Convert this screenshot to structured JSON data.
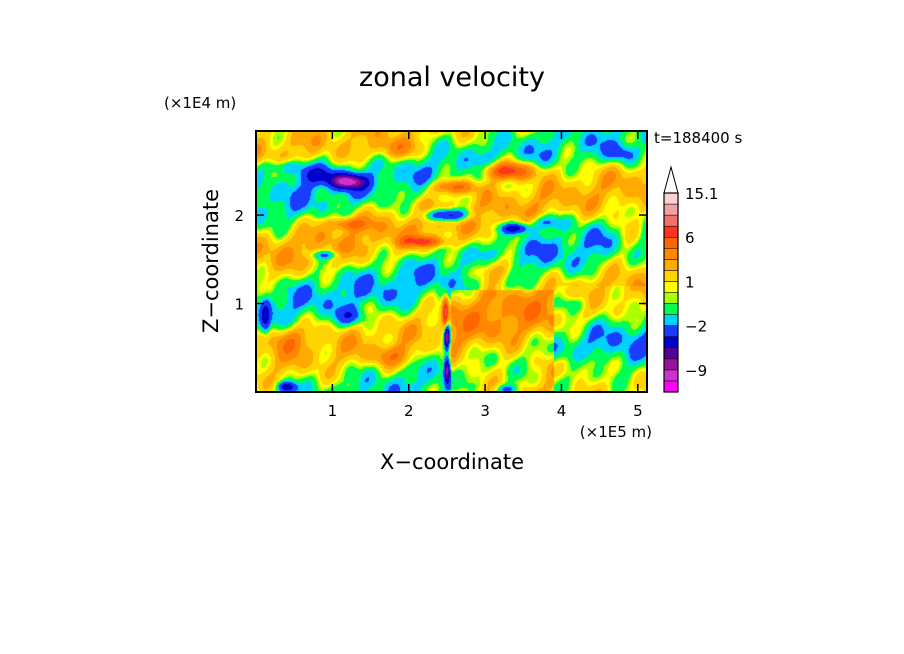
{
  "chart_data": {
    "type": "heatmap",
    "title": "zonal velocity",
    "xlabel": "X−coordinate",
    "ylabel": "Z−coordinate",
    "x_scale_label": "(×1E5 m)",
    "y_scale_label": "(×1E4 m)",
    "time_label": "t=188400 s",
    "xlim": [
      0.0,
      5.12
    ],
    "ylim": [
      0.0,
      2.95
    ],
    "x_ticks": [
      1,
      2,
      3,
      4,
      5
    ],
    "y_ticks": [
      1,
      2
    ],
    "colorbar": {
      "levels": [
        -12,
        -10.5,
        -9,
        -7.5,
        -6,
        -4,
        -2,
        -1,
        0,
        0.5,
        1,
        2,
        3,
        4.5,
        6,
        8,
        10,
        12.5,
        15.1,
        20
      ],
      "colors": [
        "#ff00ff",
        "#cc33cc",
        "#991199",
        "#550099",
        "#0000cc",
        "#1a3cff",
        "#00d2ff",
        "#00ff55",
        "#aaff00",
        "#ffff00",
        "#ffd400",
        "#ffaa00",
        "#ff8800",
        "#ff6600",
        "#ff3322",
        "#f07070",
        "#f5a0a0",
        "#fcd0d0",
        "#ffffff"
      ],
      "tick_labels": [
        "15.1",
        "6",
        "1",
        "−2",
        "−9"
      ],
      "tick_values": [
        15.1,
        6,
        1,
        -2,
        -9
      ],
      "extend": "max"
    },
    "features": [
      {
        "x": 1.2,
        "z": 2.38,
        "u": -8.5,
        "sx": 0.22,
        "sz": 0.08
      },
      {
        "x": 0.8,
        "z": 2.45,
        "u": -4,
        "sx": 0.3,
        "sz": 0.1
      },
      {
        "x": 2.5,
        "z": 2.0,
        "u": -7,
        "sx": 0.28,
        "sz": 0.07
      },
      {
        "x": 3.4,
        "z": 1.85,
        "u": -6,
        "sx": 0.18,
        "sz": 0.06
      },
      {
        "x": 3.8,
        "z": 1.92,
        "u": -3,
        "sx": 0.25,
        "sz": 0.08
      },
      {
        "x": 0.4,
        "z": 2.55,
        "u": -3,
        "sx": 0.3,
        "sz": 0.08
      },
      {
        "x": 3.3,
        "z": 2.5,
        "u": 7,
        "sx": 0.35,
        "sz": 0.1
      },
      {
        "x": 2.6,
        "z": 2.32,
        "u": 5,
        "sx": 0.3,
        "sz": 0.08
      },
      {
        "x": 2.2,
        "z": 1.7,
        "u": 5,
        "sx": 0.3,
        "sz": 0.06
      },
      {
        "x": 1.2,
        "z": 1.9,
        "u": 4,
        "sx": 0.25,
        "sz": 0.07
      },
      {
        "x": 1.8,
        "z": 2.75,
        "u": 3,
        "sx": 0.3,
        "sz": 0.12
      },
      {
        "x": 3.1,
        "z": 1.38,
        "u": 4,
        "sx": 0.3,
        "sz": 0.14
      },
      {
        "x": 2.48,
        "z": 0.9,
        "u": 7,
        "sx": 0.04,
        "sz": 0.18
      },
      {
        "x": 2.5,
        "z": 0.62,
        "u": -10,
        "sx": 0.035,
        "sz": 0.14
      },
      {
        "x": 2.5,
        "z": 0.25,
        "u": -8,
        "sx": 0.035,
        "sz": 0.14
      },
      {
        "x": 0.4,
        "z": 0.6,
        "u": 3,
        "sx": 0.25,
        "sz": 0.15
      },
      {
        "x": 0.12,
        "z": 0.85,
        "u": -4,
        "sx": 0.06,
        "sz": 0.2
      },
      {
        "x": 1.25,
        "z": 0.85,
        "u": -3,
        "sx": 0.2,
        "sz": 0.1
      },
      {
        "x": 0.9,
        "z": 1.55,
        "u": -3,
        "sx": 0.2,
        "sz": 0.05
      },
      {
        "x": 4.2,
        "z": 1.0,
        "u": -2,
        "sx": 0.25,
        "sz": 0.1
      },
      {
        "x": 3.3,
        "z": 0.02,
        "u": -4,
        "sx": 0.15,
        "sz": 0.06
      },
      {
        "x": 0.4,
        "z": 0.05,
        "u": -6,
        "sx": 0.12,
        "sz": 0.06
      },
      {
        "x": 4.2,
        "z": 0.3,
        "u": 2.5,
        "sx": 0.35,
        "sz": 0.15
      },
      {
        "x": 1.8,
        "z": 0.4,
        "u": 3,
        "sx": 0.3,
        "sz": 0.12
      },
      {
        "x": 4.8,
        "z": 2.7,
        "u": -3,
        "sx": 0.2,
        "sz": 0.12
      },
      {
        "x": 4.9,
        "z": 1.8,
        "u": 2,
        "sx": 0.25,
        "sz": 0.3
      }
    ]
  }
}
